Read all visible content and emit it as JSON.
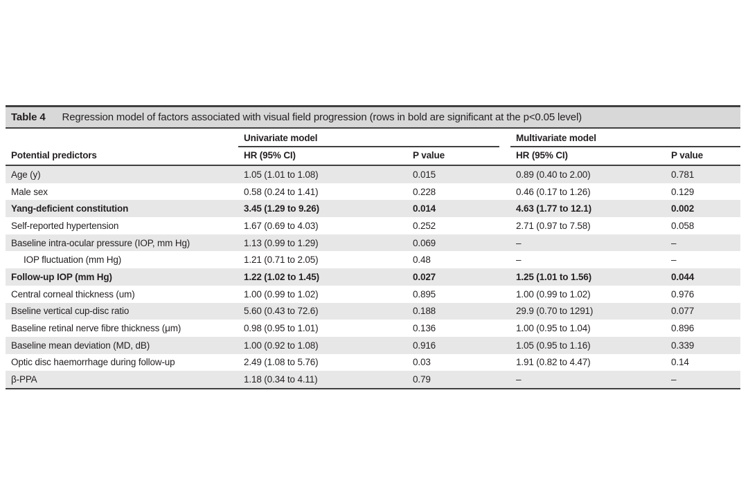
{
  "table": {
    "title_label": "Table 4",
    "title_caption": "Regression model of factors associated with visual field progression (rows in bold are significant at the p<0.05 level)",
    "group_headers": {
      "univariate": "Univariate model",
      "multivariate": "Multivariate model"
    },
    "column_headers": {
      "predictors": "Potential predictors",
      "hr": "HR (95% CI)",
      "p": "P value"
    },
    "rows": [
      {
        "predictor": "Age (y)",
        "uni_hr": "1.05 (1.01 to 1.08)",
        "uni_p": "0.015",
        "multi_hr": "0.89 (0.40 to 2.00)",
        "multi_p": "0.781",
        "bold": false,
        "indent": false
      },
      {
        "predictor": "Male sex",
        "uni_hr": "0.58 (0.24 to 1.41)",
        "uni_p": "0.228",
        "multi_hr": "0.46 (0.17 to 1.26)",
        "multi_p": "0.129",
        "bold": false,
        "indent": false
      },
      {
        "predictor": "Yang-deficient constitution",
        "uni_hr": "3.45 (1.29 to 9.26)",
        "uni_p": "0.014",
        "multi_hr": "4.63 (1.77 to 12.1)",
        "multi_p": "0.002",
        "bold": true,
        "indent": false
      },
      {
        "predictor": "Self-reported hypertension",
        "uni_hr": "1.67 (0.69 to 4.03)",
        "uni_p": "0.252",
        "multi_hr": "2.71 (0.97 to 7.58)",
        "multi_p": "0.058",
        "bold": false,
        "indent": false
      },
      {
        "predictor": "Baseline intra-ocular pressure (IOP, mm Hg)",
        "uni_hr": "1.13 (0.99 to 1.29)",
        "uni_p": "0.069",
        "multi_hr": "–",
        "multi_p": "–",
        "bold": false,
        "indent": false
      },
      {
        "predictor": "IOP fluctuation (mm Hg)",
        "uni_hr": "1.21 (0.71 to 2.05)",
        "uni_p": "0.48",
        "multi_hr": "–",
        "multi_p": "–",
        "bold": false,
        "indent": true
      },
      {
        "predictor": "Follow-up IOP (mm Hg)",
        "uni_hr": "1.22 (1.02 to 1.45)",
        "uni_p": "0.027",
        "multi_hr": "1.25 (1.01 to 1.56)",
        "multi_p": "0.044",
        "bold": true,
        "indent": false
      },
      {
        "predictor": "Central corneal thickness (um)",
        "uni_hr": "1.00 (0.99 to 1.02)",
        "uni_p": "0.895",
        "multi_hr": "1.00 (0.99 to 1.02)",
        "multi_p": "0.976",
        "bold": false,
        "indent": false
      },
      {
        "predictor": "Bseline vertical cup-disc ratio",
        "uni_hr": "5.60 (0.43 to 72.6)",
        "uni_p": "0.188",
        "multi_hr": "29.9 (0.70 to 1291)",
        "multi_p": "0.077",
        "bold": false,
        "indent": false
      },
      {
        "predictor": "Baseline retinal nerve fibre thickness (μm)",
        "uni_hr": "0.98 (0.95 to 1.01)",
        "uni_p": "0.136",
        "multi_hr": "1.00 (0.95 to 1.04)",
        "multi_p": "0.896",
        "bold": false,
        "indent": false
      },
      {
        "predictor": "Baseline mean deviation (MD, dB)",
        "uni_hr": "1.00 (0.92 to 1.08)",
        "uni_p": "0.916",
        "multi_hr": "1.05 (0.95 to 1.16)",
        "multi_p": "0.339",
        "bold": false,
        "indent": false
      },
      {
        "predictor": "Optic disc haemorrhage during follow-up",
        "uni_hr": "2.49 (1.08 to 5.76)",
        "uni_p": "0.03",
        "multi_hr": "1.91 (0.82 to 4.47)",
        "multi_p": "0.14",
        "bold": false,
        "indent": false
      },
      {
        "predictor": "β-PPA",
        "uni_hr": "1.18 (0.34 to 4.11)",
        "uni_p": "0.79",
        "multi_hr": "–",
        "multi_p": "–",
        "bold": false,
        "indent": false
      }
    ],
    "colors": {
      "title_bar_background": "#d8d8d8",
      "stripe_background": "#e7e7e7",
      "rule": "#3f3f3f",
      "text": "#231f20"
    }
  }
}
